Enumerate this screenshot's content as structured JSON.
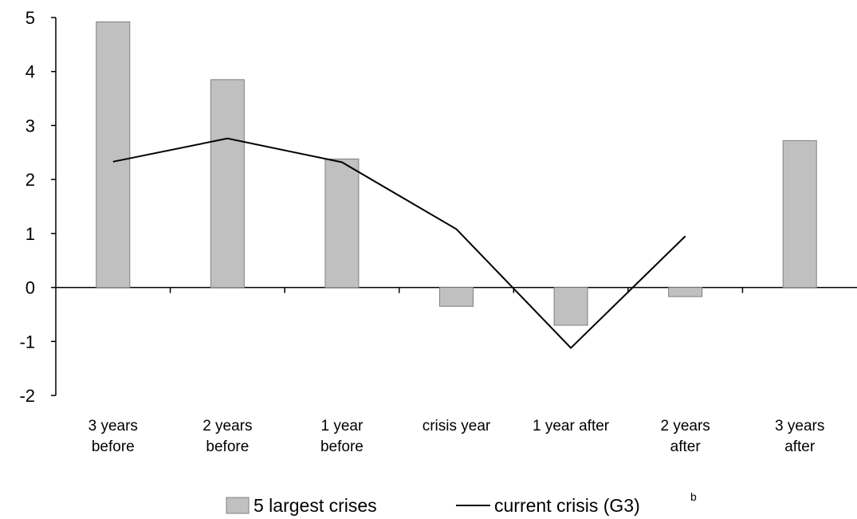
{
  "chart_data": {
    "type": "bar",
    "categories": [
      [
        "3 years",
        "before"
      ],
      [
        "2 years",
        "before"
      ],
      [
        "1 year",
        "before"
      ],
      [
        "crisis year"
      ],
      [
        "1 year after"
      ],
      [
        "2 years",
        "after"
      ],
      [
        "3 years",
        "after"
      ]
    ],
    "series": [
      {
        "name": "5 largest crises",
        "kind": "bar",
        "color": "#c0c0c0",
        "values": [
          4.92,
          3.85,
          2.38,
          -0.35,
          -0.7,
          -0.17,
          2.72
        ]
      },
      {
        "name": "current crisis (G3)",
        "kind": "line",
        "color": "#000000",
        "values": [
          2.33,
          2.76,
          2.32,
          1.08,
          -1.12,
          0.95,
          null
        ]
      }
    ],
    "ylim": [
      -2,
      5
    ],
    "yticks": [
      "-2",
      "-1",
      "0",
      "1",
      "2",
      "3",
      "4",
      "5"
    ],
    "grid": false,
    "legend_position": "bottom",
    "legend_superscript": "b"
  }
}
